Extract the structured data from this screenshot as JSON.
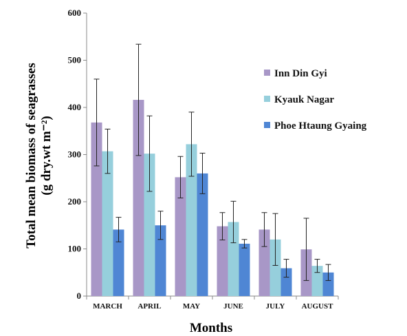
{
  "chart_data": {
    "type": "bar",
    "title": "",
    "xlabel": "Months",
    "ylabel_line1": "Total mean biomass of seagrasses",
    "ylabel_line2": "(g dry.wt m⁻²)",
    "ylim": [
      0,
      600
    ],
    "yticks": [
      "0",
      "100",
      "200",
      "300",
      "400",
      "500",
      "600"
    ],
    "categories": [
      "MARCH",
      "APRIL",
      "MAY",
      "JUNE",
      "JULY",
      "AUGUST"
    ],
    "legend_position": "right",
    "grid": false,
    "series": [
      {
        "name": "Inn Din Gyi",
        "color": "#a897c7",
        "values": [
          368,
          416,
          252,
          148,
          141,
          99
        ],
        "errors": [
          92,
          118,
          44,
          29,
          36,
          66
        ]
      },
      {
        "name": "Kyauk Nagar",
        "color": "#96cfdc",
        "values": [
          307,
          302,
          322,
          157,
          120,
          64
        ],
        "errors": [
          47,
          80,
          68,
          44,
          55,
          14
        ]
      },
      {
        "name": "Phoe Htaung Gyaing",
        "color": "#4f86d4",
        "values": [
          141,
          150,
          260,
          111,
          59,
          50
        ],
        "errors": [
          26,
          30,
          43,
          9,
          19,
          17
        ]
      }
    ]
  }
}
